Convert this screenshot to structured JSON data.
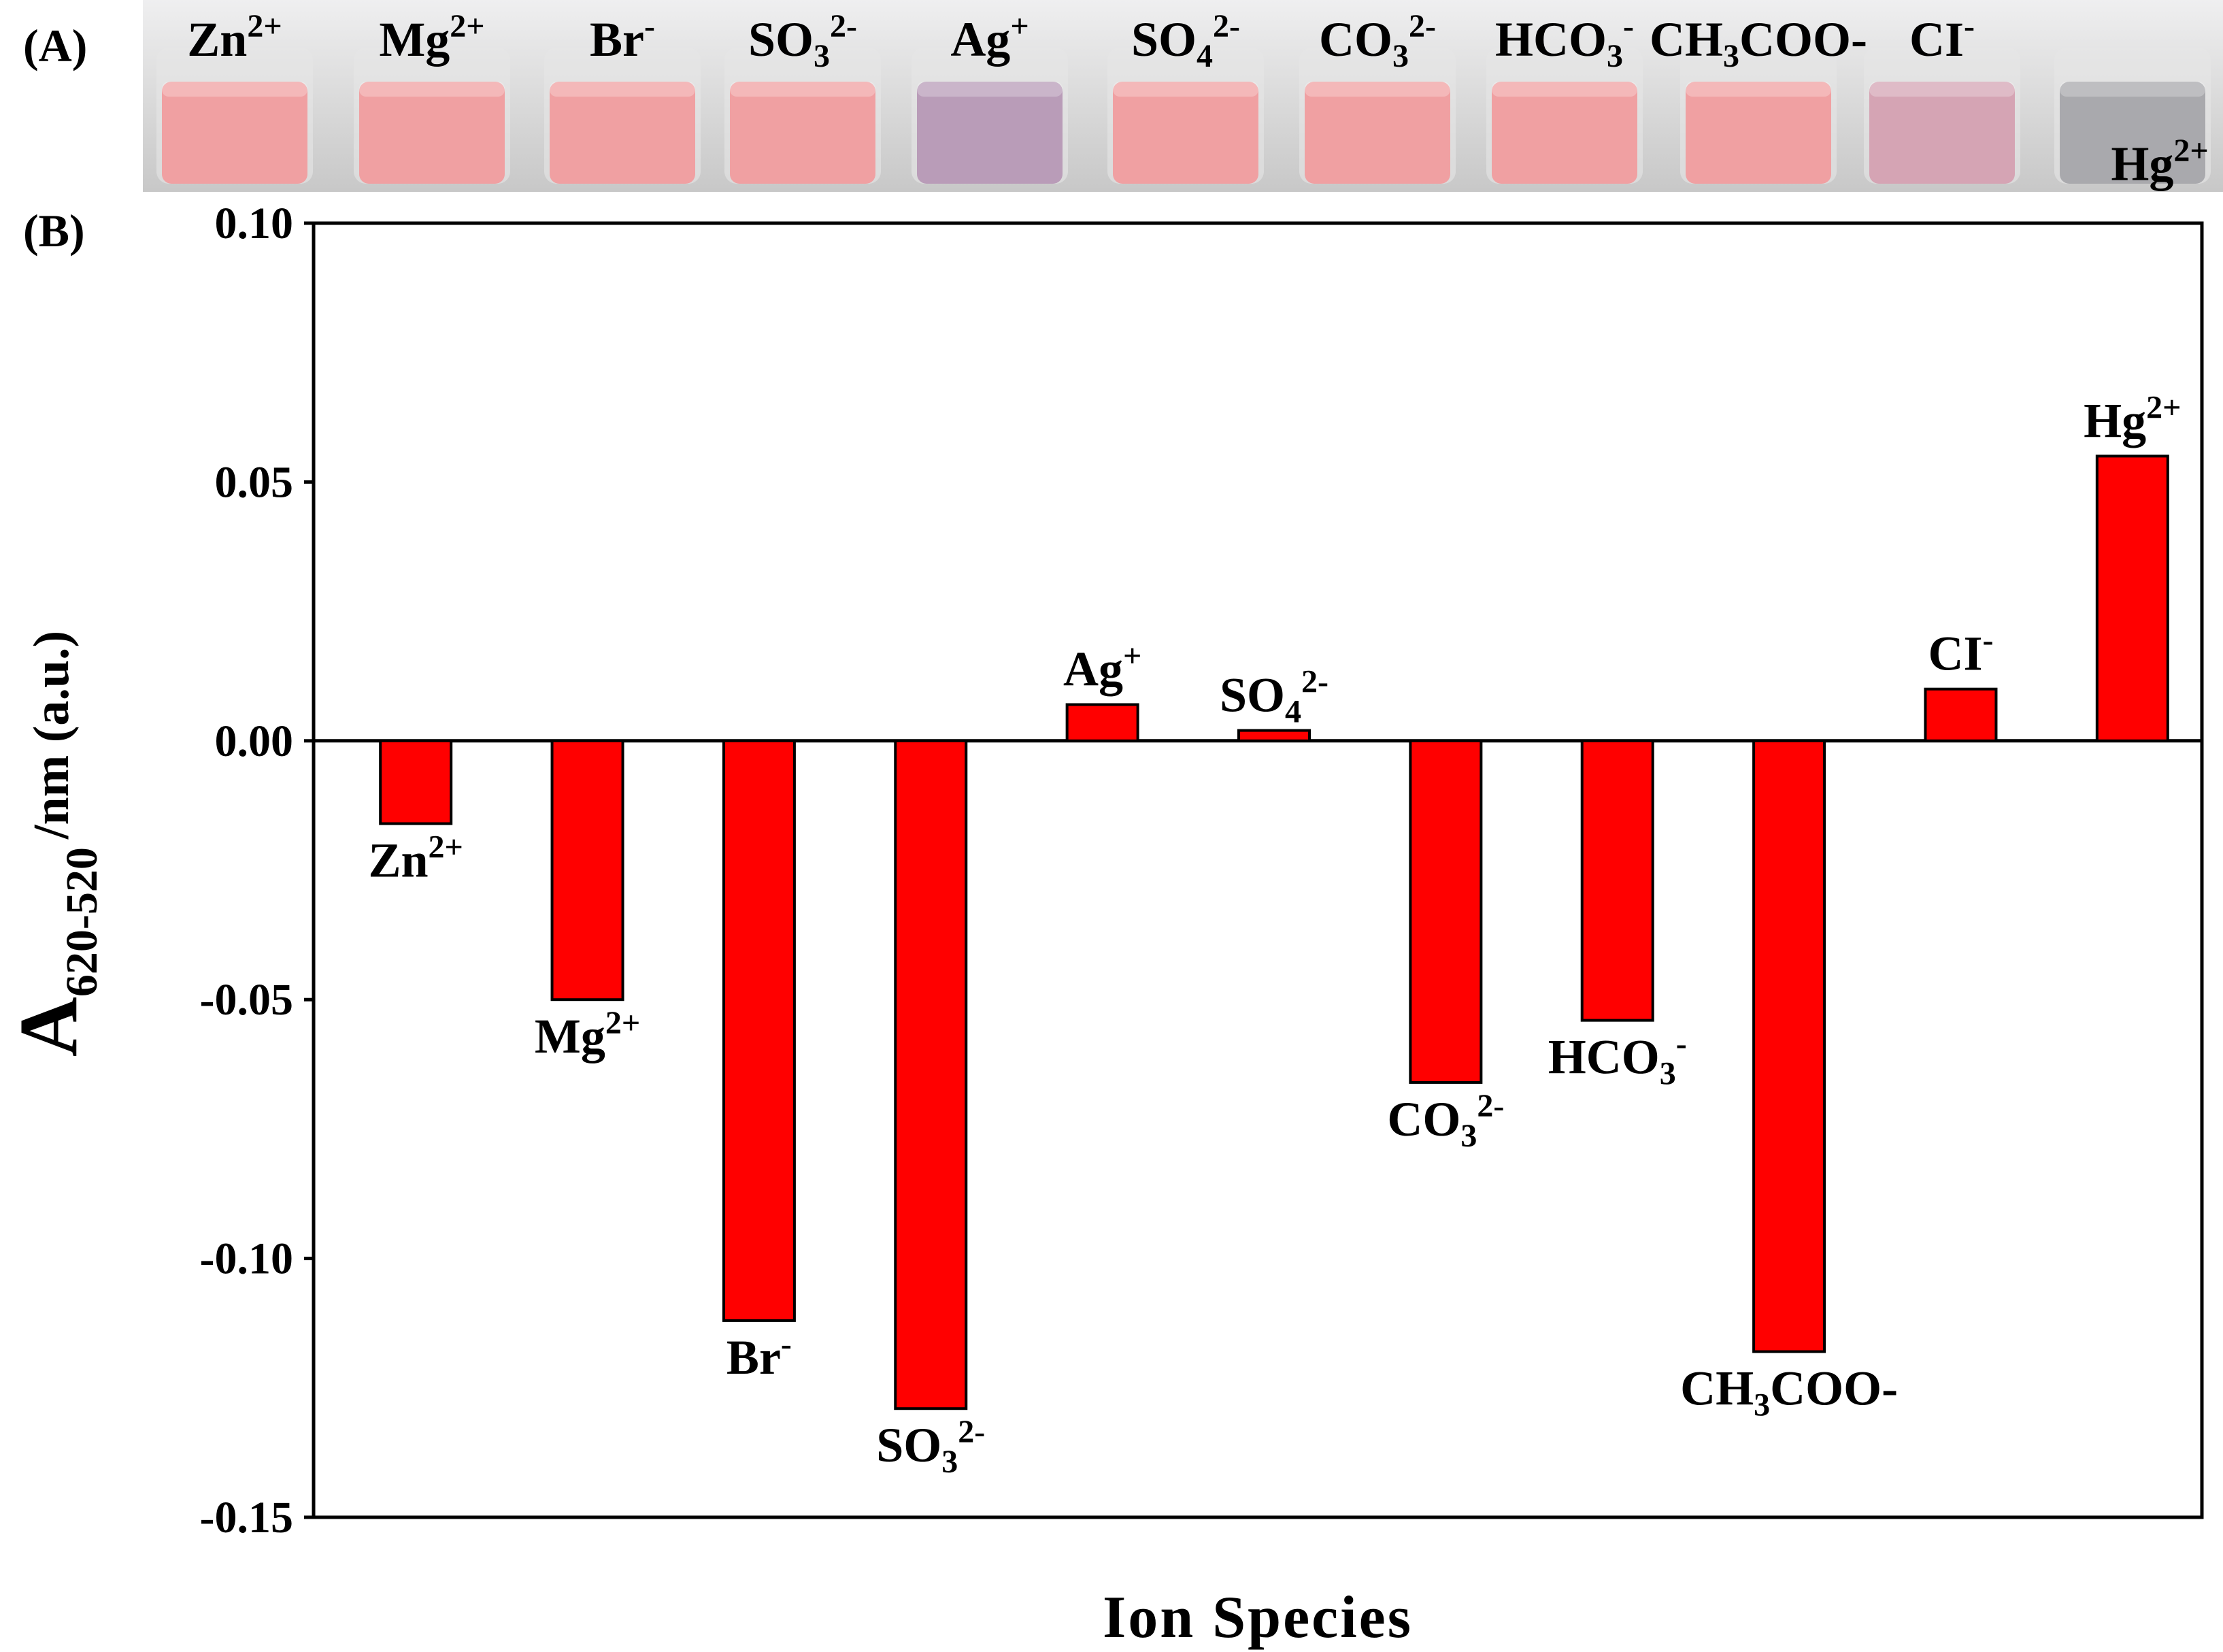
{
  "panels": {
    "a": "(A)",
    "b": "(B)"
  },
  "colors": {
    "bar": "#ff0000",
    "axis": "#000000"
  },
  "vials": [
    {
      "base": "Zn",
      "sub": "",
      "sup": "2+",
      "tail": "",
      "color": "#f0a0a2"
    },
    {
      "base": "Mg",
      "sub": "",
      "sup": "2+",
      "tail": "",
      "color": "#f0a0a2"
    },
    {
      "base": "Br",
      "sub": "",
      "sup": "-",
      "tail": "",
      "color": "#f0a0a2"
    },
    {
      "base": "SO",
      "sub": "3",
      "sup": "2-",
      "tail": "",
      "color": "#f0a0a2"
    },
    {
      "base": "Ag",
      "sub": "",
      "sup": "+",
      "tail": "",
      "color": "#b99cb8"
    },
    {
      "base": "SO",
      "sub": "4",
      "sup": "2-",
      "tail": "",
      "color": "#f0a0a2"
    },
    {
      "base": "CO",
      "sub": "3",
      "sup": "2-",
      "tail": "",
      "color": "#f0a0a2"
    },
    {
      "base": "HCO",
      "sub": "3",
      "sup": "-",
      "tail": "",
      "color": "#f0a0a2"
    },
    {
      "base": "CH",
      "sub": "3",
      "sup": "",
      "tail": "COO-",
      "color": "#f0a0a2"
    },
    {
      "base": "CI",
      "sub": "",
      "sup": "-",
      "tail": "",
      "color": "#d5a4b4"
    },
    {
      "base": "Hg",
      "sub": "",
      "sup": "2+",
      "tail": "",
      "color": "#a9a9ad"
    }
  ],
  "chart_data": {
    "type": "bar",
    "categories": [
      {
        "base": "Zn",
        "sub": "",
        "sup": "2+",
        "tail": ""
      },
      {
        "base": "Mg",
        "sub": "",
        "sup": "2+",
        "tail": ""
      },
      {
        "base": "Br",
        "sub": "",
        "sup": "-",
        "tail": ""
      },
      {
        "base": "SO",
        "sub": "3",
        "sup": "2-",
        "tail": ""
      },
      {
        "base": "Ag",
        "sub": "",
        "sup": "+",
        "tail": ""
      },
      {
        "base": "SO",
        "sub": "4",
        "sup": "2-",
        "tail": ""
      },
      {
        "base": "CO",
        "sub": "3",
        "sup": "2-",
        "tail": ""
      },
      {
        "base": "HCO",
        "sub": "3",
        "sup": "-",
        "tail": ""
      },
      {
        "base": "CH",
        "sub": "3",
        "sup": "",
        "tail": "COO-"
      },
      {
        "base": "CI",
        "sub": "",
        "sup": "-",
        "tail": ""
      },
      {
        "base": "Hg",
        "sub": "",
        "sup": "2+",
        "tail": ""
      }
    ],
    "values": [
      -0.016,
      -0.05,
      -0.112,
      -0.129,
      0.007,
      0.002,
      -0.066,
      -0.054,
      -0.118,
      0.01,
      0.055
    ],
    "ylim": [
      -0.15,
      0.1
    ],
    "yticks": [
      0.1,
      0.05,
      0.0,
      -0.05,
      -0.1,
      -0.15
    ],
    "ytick_labels": [
      "0.10",
      "0.05",
      "0.00",
      "-0.05",
      "-0.10",
      "-0.15"
    ],
    "xlabel": "Ion Species",
    "ylabel": {
      "main": "A",
      "sub": "620-520",
      "rest": "/nm (a.u.)"
    },
    "grid": false,
    "legend": "none"
  }
}
